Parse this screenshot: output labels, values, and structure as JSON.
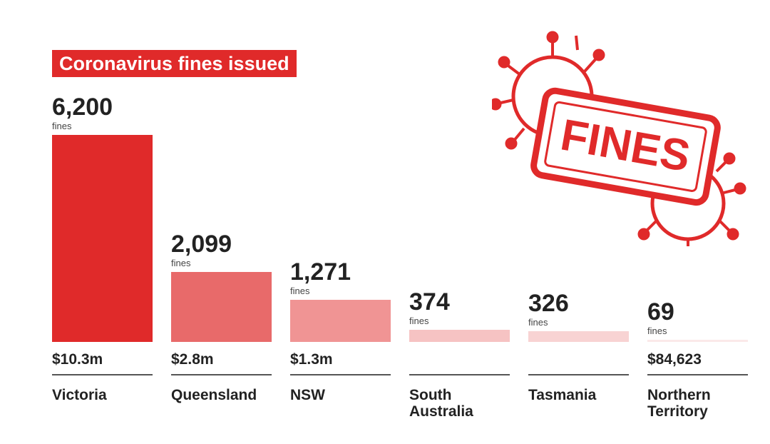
{
  "chart_data": {
    "type": "bar",
    "title": "Coronavirus fines issued",
    "categories": [
      "Victoria",
      "Queensland",
      "NSW",
      "South Australia",
      "Tasmania",
      "Northern Territory"
    ],
    "values": [
      6200,
      2099,
      1271,
      374,
      326,
      69
    ],
    "value_labels": [
      "6,200",
      "2,099",
      "1,271",
      "374",
      "326",
      "69"
    ],
    "unit_label": "fines",
    "amounts": [
      "$10.3m",
      "$2.8m",
      "$1.3m",
      null,
      null,
      "$84,623"
    ],
    "colors": [
      "#e02a2a",
      "#e86a6a",
      "#f09494",
      "#f6c3c3",
      "#f8d3d3",
      "#fbe9e9"
    ],
    "stamp_text": "FINES"
  }
}
